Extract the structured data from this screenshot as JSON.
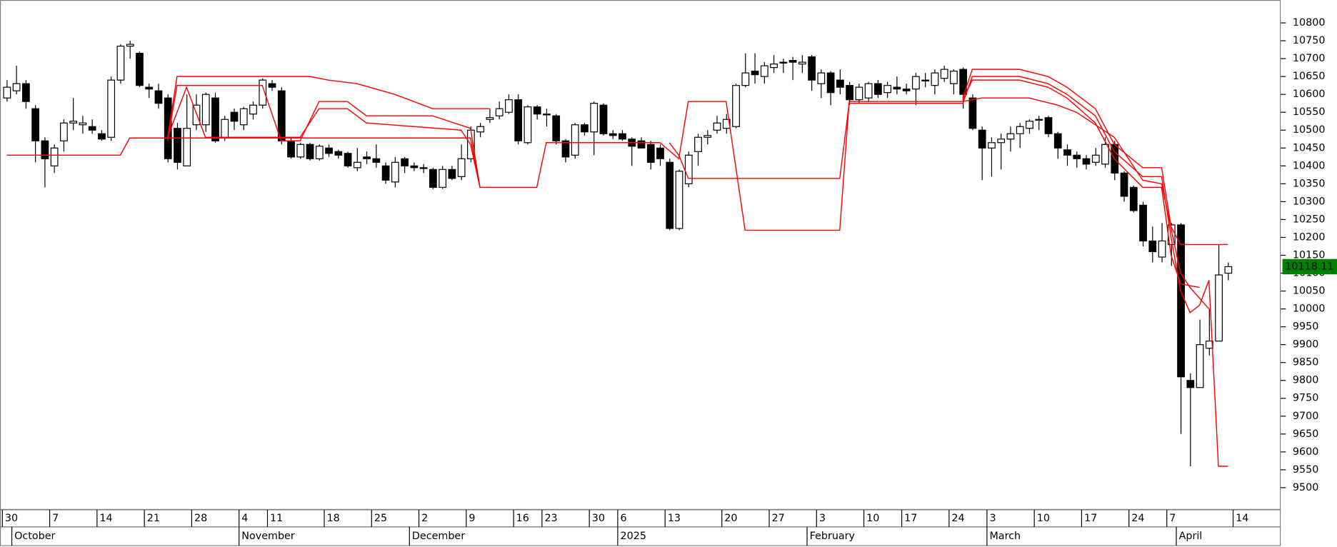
{
  "chart_data": {
    "type": "candlestick",
    "open": [
      10590,
      10610,
      10630,
      10560,
      10470,
      10400,
      10470,
      10520,
      10515,
      10510,
      10490,
      10480,
      10640,
      10735,
      10715,
      10620,
      10610,
      10590,
      10505,
      10400,
      10515,
      10515,
      10590,
      10480,
      10550,
      10515,
      10545,
      10570,
      10630,
      10610,
      10470,
      10425,
      10460,
      10420,
      10450,
      10440,
      10435,
      10395,
      10425,
      10420,
      10400,
      10355,
      10420,
      10400,
      10395,
      10390,
      10340,
      10390,
      10370,
      10420,
      10495,
      10530,
      10540,
      10550,
      10585,
      10465,
      10565,
      10545,
      10540,
      10470,
      10430,
      10515,
      10495,
      10570,
      10490,
      10490,
      10475,
      10470,
      10460,
      10450,
      10410,
      10225,
      10350,
      10440,
      10480,
      10500,
      10505,
      10510,
      10625,
      10665,
      10650,
      10675,
      10690,
      10695,
      10685,
      10705,
      10630,
      10660,
      10640,
      10625,
      10585,
      10590,
      10630,
      10605,
      10620,
      10615,
      10615,
      10640,
      10625,
      10645,
      10630,
      10670,
      10590,
      10500,
      10450,
      10465,
      10475,
      10490,
      10505,
      10530,
      10535,
      10490,
      10445,
      10430,
      10420,
      10410,
      10405,
      10460,
      10380,
      10340,
      10290,
      10190,
      10145,
      10180,
      10235,
      9800,
      9780,
      9890,
      9910,
      10100
    ],
    "high": [
      10640,
      10680,
      10640,
      10570,
      10480,
      10460,
      10530,
      10590,
      10540,
      10530,
      10500,
      10650,
      10740,
      10750,
      10720,
      10630,
      10630,
      10600,
      10520,
      10600,
      10600,
      10605,
      10605,
      10540,
      10560,
      10565,
      10580,
      10645,
      10640,
      10620,
      10480,
      10465,
      10465,
      10460,
      10460,
      10445,
      10440,
      10450,
      10440,
      10460,
      10410,
      10425,
      10425,
      10410,
      10405,
      10395,
      10400,
      10400,
      10460,
      10510,
      10520,
      10560,
      10580,
      10600,
      10600,
      10570,
      10570,
      10560,
      10545,
      10475,
      10520,
      10520,
      10580,
      10575,
      10500,
      10500,
      10480,
      10480,
      10470,
      10460,
      10420,
      10390,
      10440,
      10490,
      10500,
      10540,
      10545,
      10630,
      10715,
      10715,
      10690,
      10710,
      10700,
      10705,
      10710,
      10710,
      10670,
      10665,
      10670,
      10635,
      10630,
      10635,
      10640,
      10635,
      10650,
      10630,
      10660,
      10660,
      10670,
      10680,
      10670,
      10675,
      10600,
      10510,
      10480,
      10490,
      10510,
      10520,
      10530,
      10540,
      10540,
      10495,
      10460,
      10440,
      10430,
      10450,
      10480,
      10470,
      10385,
      10345,
      10300,
      10230,
      10240,
      10240,
      10240,
      9820,
      9970,
      10000,
      10180,
      10130
    ],
    "low": [
      10580,
      10600,
      10560,
      10410,
      10340,
      10380,
      10440,
      10500,
      10490,
      10490,
      10470,
      10470,
      10630,
      10700,
      10620,
      10590,
      10560,
      10410,
      10390,
      10400,
      10500,
      10495,
      10465,
      10470,
      10500,
      10500,
      10530,
      10560,
      10610,
      10460,
      10420,
      10420,
      10415,
      10415,
      10425,
      10420,
      10395,
      10385,
      10405,
      10395,
      10350,
      10340,
      10380,
      10385,
      10380,
      10335,
      10335,
      10360,
      10360,
      10410,
      10480,
      10520,
      10530,
      10545,
      10460,
      10460,
      10530,
      10510,
      10460,
      10410,
      10420,
      10485,
      10430,
      10485,
      10475,
      10470,
      10400,
      10450,
      10390,
      10400,
      10220,
      10220,
      10340,
      10400,
      10460,
      10490,
      10490,
      10505,
      10620,
      10630,
      10630,
      10660,
      10660,
      10640,
      10660,
      10610,
      10590,
      10570,
      10600,
      10570,
      10575,
      10580,
      10590,
      10590,
      10600,
      10600,
      10570,
      10620,
      10600,
      10635,
      10600,
      10560,
      10500,
      10360,
      10370,
      10390,
      10440,
      10450,
      10490,
      10500,
      10480,
      10420,
      10400,
      10395,
      10390,
      10400,
      10395,
      10360,
      10300,
      10270,
      10175,
      10130,
      10130,
      10120,
      9650,
      9560,
      9780,
      9870,
      9910,
      10080
    ],
    "close": [
      10620,
      10630,
      10580,
      10470,
      10420,
      10450,
      10520,
      10525,
      10520,
      10500,
      10475,
      10640,
      10735,
      10740,
      10625,
      10615,
      10575,
      10420,
      10410,
      10505,
      10570,
      10600,
      10470,
      10530,
      10525,
      10560,
      10570,
      10640,
      10620,
      10470,
      10425,
      10460,
      10420,
      10455,
      10435,
      10430,
      10400,
      10410,
      10420,
      10410,
      10360,
      10410,
      10400,
      10395,
      10395,
      10340,
      10390,
      10365,
      10420,
      10500,
      10510,
      10535,
      10560,
      10585,
      10470,
      10565,
      10545,
      10545,
      10470,
      10425,
      10515,
      10495,
      10575,
      10490,
      10485,
      10475,
      10455,
      10450,
      10410,
      10420,
      10225,
      10385,
      10430,
      10480,
      10485,
      10520,
      10530,
      10625,
      10660,
      10655,
      10680,
      10685,
      10690,
      10690,
      10690,
      10640,
      10660,
      10605,
      10620,
      10585,
      10620,
      10630,
      10600,
      10625,
      10615,
      10610,
      10650,
      10640,
      10660,
      10670,
      10665,
      10600,
      10505,
      10450,
      10465,
      10475,
      10490,
      10510,
      10525,
      10530,
      10490,
      10450,
      10430,
      10420,
      10405,
      10430,
      10460,
      10380,
      10315,
      10275,
      10190,
      10160,
      10190,
      10235,
      9810,
      9780,
      9900,
      9910,
      10095,
      10118.11
    ],
    "up_color": "#ffffff",
    "down_color": "#000000",
    "outline_color": "#000000",
    "lines": [
      {
        "color": "#ff0000",
        "x": [
          0,
          12,
          13,
          17,
          49,
          50,
          56,
          57,
          69,
          71,
          72,
          76,
          78,
          88,
          89,
          101,
          103,
          108,
          111,
          113,
          117,
          120,
          122,
          124,
          125,
          127
        ],
        "values": [
          10430,
          10430,
          10478,
          10478,
          10478,
          10340,
          10340,
          10465,
          10465,
          10420,
          10580,
          10580,
          10220,
          10220,
          10580,
          10580,
          10590,
          10590,
          10570,
          10550,
          10480,
          10360,
          10350,
          10100,
          10060,
          10000
        ]
      },
      {
        "color": "#ff0000",
        "x": [
          17,
          18,
          32,
          34,
          37,
          41,
          45,
          51,
          null,
          101,
          102,
          107,
          110,
          112,
          115,
          117,
          120,
          122,
          123,
          124,
          129
        ],
        "values": [
          10478,
          10650,
          10650,
          10640,
          10630,
          10600,
          10560,
          10560,
          null,
          10590,
          10670,
          10670,
          10650,
          10620,
          10560,
          10460,
          10395,
          10395,
          10230,
          10180,
          10180
        ]
      },
      {
        "color": "#ff0000",
        "x": [
          17,
          18,
          27,
          29,
          31,
          33,
          36,
          38,
          45,
          49,
          50,
          null,
          70,
          71,
          72,
          88,
          89,
          101,
          102,
          107,
          110,
          112,
          115,
          117,
          120,
          122,
          123,
          124,
          125,
          126,
          127,
          128,
          129
        ],
        "values": [
          10470,
          10625,
          10625,
          10470,
          10470,
          10580,
          10580,
          10540,
          10540,
          10505,
          10340,
          null,
          10465,
          10430,
          10365,
          10365,
          10575,
          10575,
          10650,
          10650,
          10630,
          10600,
          10540,
          10440,
          10370,
          10370,
          10200,
          10050,
          9990,
          10010,
          10080,
          9560,
          9560
        ]
      },
      {
        "color": "#ff0000",
        "x": [
          17,
          19,
          21,
          31,
          33,
          36,
          38,
          48,
          49,
          50,
          null,
          101,
          102,
          107,
          110,
          112,
          115,
          117,
          120,
          122,
          123,
          124,
          126
        ],
        "values": [
          10480,
          10620,
          10480,
          10480,
          10560,
          10560,
          10520,
          10500,
          10460,
          10340,
          null,
          10585,
          10640,
          10640,
          10620,
          10590,
          10520,
          10420,
          10340,
          10340,
          10150,
          10070,
          10060
        ]
      }
    ],
    "last_value": 10118.11,
    "last_value_color": "#008000",
    "xlim": [
      -0.7,
      134.4
    ],
    "ylim": [
      9438,
      10864
    ],
    "yticks": [
      9500,
      9550,
      9600,
      9650,
      9700,
      9750,
      9800,
      9850,
      9900,
      9950,
      10000,
      10050,
      10100,
      10150,
      10200,
      10250,
      10300,
      10350,
      10400,
      10450,
      10500,
      10550,
      10600,
      10650,
      10700,
      10750,
      10800
    ],
    "xticks": [
      {
        "value": 0,
        "label": "30"
      },
      {
        "value": 5,
        "label": "7"
      },
      {
        "value": 10,
        "label": "14"
      },
      {
        "value": 15,
        "label": "21"
      },
      {
        "value": 20,
        "label": "28"
      },
      {
        "value": 25,
        "label": "4"
      },
      {
        "value": 28,
        "label": "11"
      },
      {
        "value": 34,
        "label": "18"
      },
      {
        "value": 39,
        "label": "25"
      },
      {
        "value": 44,
        "label": "2"
      },
      {
        "value": 49,
        "label": "9"
      },
      {
        "value": 54,
        "label": "16"
      },
      {
        "value": 57,
        "label": "23"
      },
      {
        "value": 62,
        "label": "30"
      },
      {
        "value": 65,
        "label": "6"
      },
      {
        "value": 70,
        "label": "13"
      },
      {
        "value": 76,
        "label": "20"
      },
      {
        "value": 81,
        "label": "27"
      },
      {
        "value": 86,
        "label": "3"
      },
      {
        "value": 91,
        "label": "10"
      },
      {
        "value": 95,
        "label": "17"
      },
      {
        "value": 100,
        "label": "24"
      },
      {
        "value": 104,
        "label": "3"
      },
      {
        "value": 109,
        "label": "10"
      },
      {
        "value": 114,
        "label": "17"
      },
      {
        "value": 119,
        "label": "24"
      },
      {
        "value": 123,
        "label": "7"
      },
      {
        "value": 130,
        "label": "14"
      }
    ],
    "month_ticks": [
      {
        "value": 1,
        "label": "October"
      },
      {
        "value": 25,
        "label": "November"
      },
      {
        "value": 43,
        "label": "December"
      },
      {
        "value": 65,
        "label": "2025"
      },
      {
        "value": 85,
        "label": "February"
      },
      {
        "value": 104,
        "label": "March"
      },
      {
        "value": 124,
        "label": "April"
      }
    ]
  }
}
